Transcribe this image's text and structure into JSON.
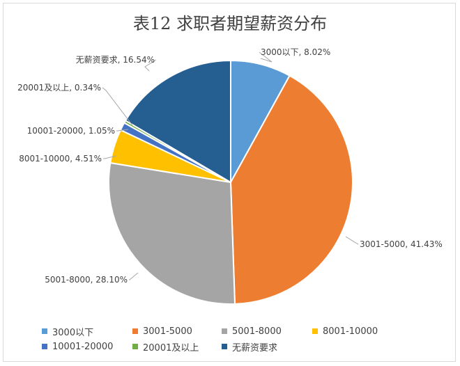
{
  "chart_data": {
    "type": "pie",
    "title": "表12 求职者期望薪资分布",
    "slices": [
      {
        "name": "3000以下",
        "value": 8.02,
        "label": "3000以下, 8.02%",
        "color": "#5b9bd5"
      },
      {
        "name": "3001-5000",
        "value": 41.43,
        "label": "3001-5000, 41.43%",
        "color": "#ed7d31"
      },
      {
        "name": "5001-8000",
        "value": 28.1,
        "label": "5001-8000, 28.10%",
        "color": "#a5a5a5"
      },
      {
        "name": "8001-10000",
        "value": 4.51,
        "label": "8001-10000, 4.51%",
        "color": "#ffc000"
      },
      {
        "name": "10001-20000",
        "value": 1.05,
        "label": "10001-20000, 1.05%",
        "color": "#4472c4"
      },
      {
        "name": "20001及以上",
        "value": 0.34,
        "label": "20001及以上, 0.34%",
        "color": "#70ad47"
      },
      {
        "name": "无薪资要求",
        "value": 16.54,
        "label": "无薪资要求, 16.54%",
        "color": "#255e91"
      }
    ],
    "legend": "bottom"
  }
}
